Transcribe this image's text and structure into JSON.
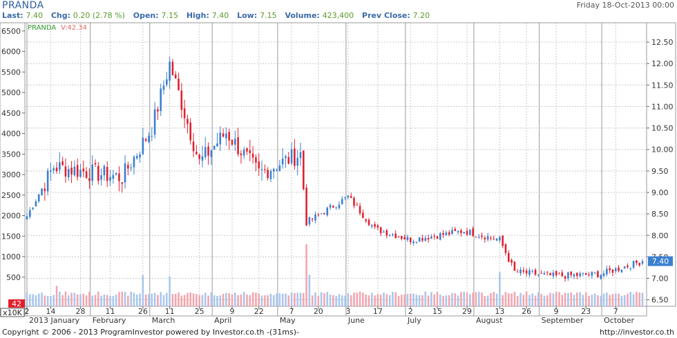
{
  "header": {
    "symbol": "PRANDA",
    "date": "Friday 18-Oct-2013 00:00",
    "last_label": "Last:",
    "last": "7.40",
    "chg_label": "Chg:",
    "chg": "0.20 (2.78 %)",
    "open_label": "Open:",
    "open": "7.15",
    "high_label": "High:",
    "high": "7.40",
    "low_label": "Low:",
    "low": "7.15",
    "volume_label": "Volume:",
    "volume": "423,400",
    "prev_label": "Prev Close:",
    "prev": "7.20"
  },
  "legend": {
    "symbol": "PRANDA",
    "vol_label": "V:42.34"
  },
  "footer": {
    "copyright": "Copyright © 2006 - 2013 ProgramInvestor powered by Investor.co.th -(31ms)-",
    "url": "http://investor.co.th"
  },
  "colors": {
    "up": "#3a7fd0",
    "down": "#e0202e",
    "grid": "#c8c8c8",
    "vol_up": "#a9c6ec",
    "vol_down": "#f2a6ae",
    "last_badge": "#3a7fd0",
    "vol_badge": "#e0202e"
  },
  "chart_data": {
    "type": "candlestick",
    "price_axis": {
      "min": 6.35,
      "max": 12.95,
      "ticks": [
        "6.50",
        "7.00",
        "7.50",
        "8.00",
        "8.50",
        "9.00",
        "9.50",
        "10.00",
        "10.50",
        "11.00",
        "11.50",
        "12.00",
        "12.50"
      ],
      "values": [
        6.5,
        7.0,
        7.5,
        8.0,
        8.5,
        9.0,
        9.5,
        10.0,
        10.5,
        11.0,
        11.5,
        12.0,
        12.5
      ]
    },
    "left_axis": {
      "min": -210,
      "max": 6700,
      "ticks": [
        "500",
        "1000",
        "1500",
        "2000",
        "2500",
        "3000",
        "3500",
        "4000",
        "4500",
        "5000",
        "5500",
        "6000",
        "6500"
      ],
      "values": [
        500,
        1000,
        1500,
        2000,
        2500,
        3000,
        3500,
        4000,
        4500,
        5000,
        5500,
        6000,
        6500
      ],
      "unit_label": "x10K",
      "current_volume": "42"
    },
    "last_price_badge": "7.40",
    "day_labels": [
      "2",
      "14",
      "28",
      "11",
      "26",
      "11",
      "25",
      "9",
      "22",
      "7",
      "20",
      "3",
      "17",
      "2",
      "15",
      "29",
      "13",
      "26",
      "9",
      "23",
      "7"
    ],
    "month_labels": [
      "2013 January",
      "February",
      "March",
      "April",
      "May",
      "June",
      "July",
      "August",
      "September",
      "October"
    ],
    "key_points": [
      {
        "date": "2013-01-02",
        "close": 8.45
      },
      {
        "date": "2013-01-15",
        "close": 9.6
      },
      {
        "date": "2013-02-15",
        "close": 9.35
      },
      {
        "date": "2013-03-01",
        "close": 10.5
      },
      {
        "date": "2013-03-11",
        "close": 12.0
      },
      {
        "date": "2013-03-25",
        "close": 9.7
      },
      {
        "date": "2013-04-05",
        "close": 10.4
      },
      {
        "date": "2013-04-22",
        "close": 9.45
      },
      {
        "date": "2013-05-10",
        "close": 9.9
      },
      {
        "date": "2013-05-14",
        "close": 8.3
      },
      {
        "date": "2013-06-03",
        "close": 8.9
      },
      {
        "date": "2013-06-14",
        "close": 8.15
      },
      {
        "date": "2013-07-02",
        "close": 7.9
      },
      {
        "date": "2013-07-26",
        "close": 8.1
      },
      {
        "date": "2013-08-13",
        "close": 7.9
      },
      {
        "date": "2013-08-20",
        "close": 7.15
      },
      {
        "date": "2013-09-09",
        "close": 7.05
      },
      {
        "date": "2013-09-30",
        "close": 7.1
      },
      {
        "date": "2013-10-18",
        "close": 7.4
      }
    ]
  }
}
